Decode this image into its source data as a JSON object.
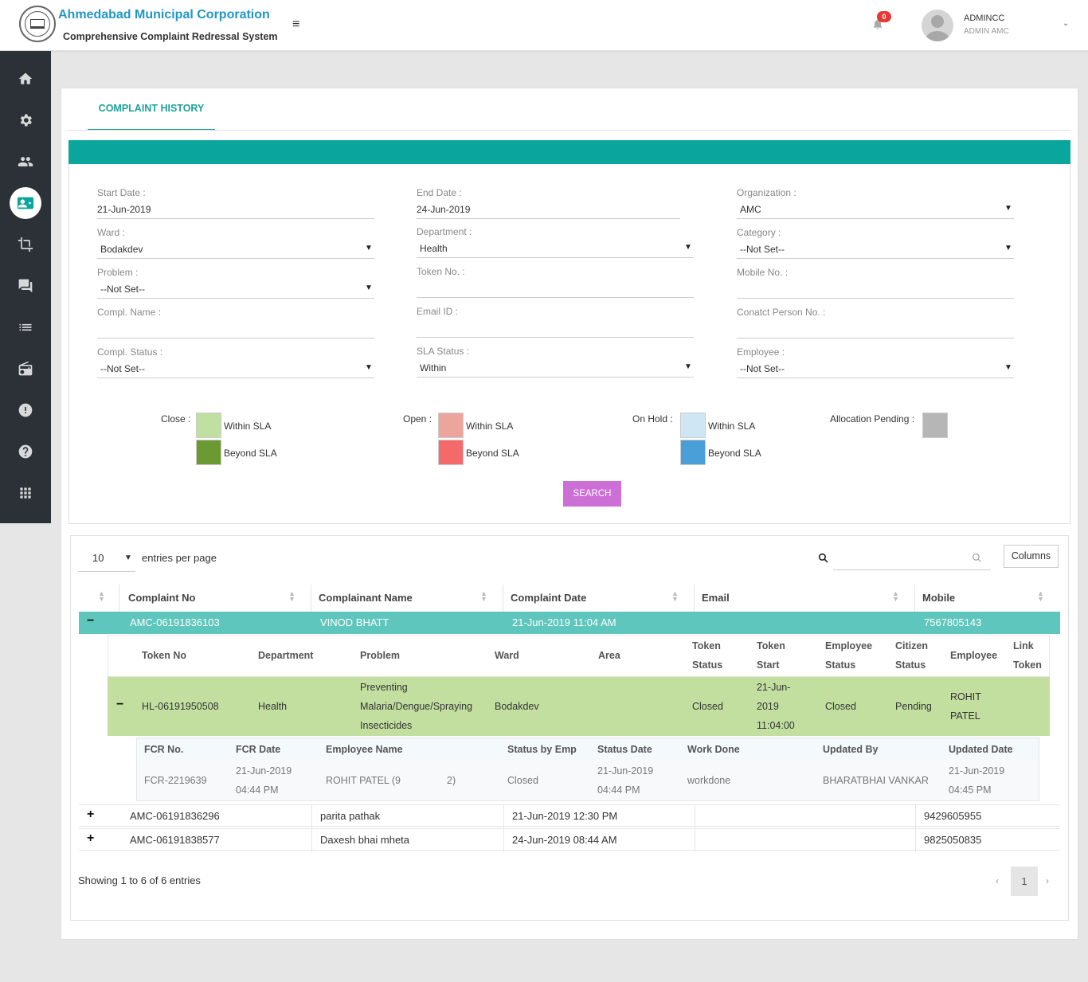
{
  "header": {
    "org_title": "Ahmedabad Municipal Corporation",
    "system_title": "Comprehensive Complaint Redressal System",
    "menu_icon": "≡",
    "notification_count": "0",
    "user_name": "ADMINCC",
    "user_role": "ADMIN AMC"
  },
  "tabs": {
    "active": "COMPLAINT HISTORY"
  },
  "filters": {
    "start_date": {
      "label": "Start Date :",
      "value": "21-Jun-2019"
    },
    "end_date": {
      "label": "End Date :",
      "value": "24-Jun-2019"
    },
    "organization": {
      "label": "Organization :",
      "value": "AMC"
    },
    "ward": {
      "label": "Ward :",
      "value": "Bodakdev"
    },
    "department": {
      "label": "Department :",
      "value": "Health"
    },
    "category": {
      "label": "Category :",
      "value": "--Not Set--"
    },
    "problem": {
      "label": "Problem :",
      "value": "--Not Set--"
    },
    "token_no": {
      "label": "Token No. :",
      "value": ""
    },
    "mobile_no": {
      "label": "Mobile No. :",
      "value": ""
    },
    "compl_name": {
      "label": "Compl. Name :",
      "value": ""
    },
    "email_id": {
      "label": "Email ID :",
      "value": ""
    },
    "contact_person": {
      "label": "Conatct Person No. :",
      "value": ""
    },
    "compl_status": {
      "label": "Compl. Status :",
      "value": "--Not Set--"
    },
    "sla_status": {
      "label": "SLA Status :",
      "value": "Within"
    },
    "employee": {
      "label": "Employee :",
      "value": "--Not Set--"
    }
  },
  "legend": {
    "close": {
      "label": "Close :",
      "within": "Within SLA",
      "beyond": "Beyond SLA",
      "within_color": "#bfe0a0",
      "beyond_color": "#6b9a33"
    },
    "open": {
      "label": "Open :",
      "within": "Within SLA",
      "beyond": "Beyond SLA",
      "within_color": "#eba59d",
      "beyond_color": "#f46a6a"
    },
    "on_hold": {
      "label": "On Hold :",
      "within": "Within SLA",
      "beyond": "Beyond SLA",
      "within_color": "#cfe6f5",
      "beyond_color": "#4a9fd8"
    },
    "allocation_pending": {
      "label": "Allocation Pending :",
      "color": "#b6b6b6"
    }
  },
  "search_button": "SEARCH",
  "table": {
    "entries_value": "10",
    "entries_label": "entries per page",
    "columns_button": "Columns",
    "headers": [
      "Complaint No",
      "Complainant Name",
      "Complaint Date",
      "Email",
      "Mobile"
    ],
    "rows": [
      {
        "toggle": "−",
        "complaint_no": "AMC-06191836103",
        "name": "VINOD BHATT",
        "date": "21-Jun-2019 11:04 AM",
        "email": "",
        "mobile": "7567805143"
      },
      {
        "toggle": "+",
        "complaint_no": "AMC-06191836296",
        "name": "parita pathak",
        "date": "21-Jun-2019 12:30 PM",
        "email": "",
        "mobile": "9429605955"
      },
      {
        "toggle": "+",
        "complaint_no": "AMC-06191838577",
        "name": "Daxesh bhai mheta",
        "date": "24-Jun-2019 08:44 AM",
        "email": "",
        "mobile": "9825050835"
      }
    ],
    "token_headers": {
      "token_no": "Token No",
      "department": "Department",
      "problem": "Problem",
      "ward": "Ward",
      "area": "Area",
      "token_status_1": "Token",
      "token_status_2": "Status",
      "token_start_1": "Token",
      "token_start_2": "Start",
      "employee_status_1": "Employee",
      "employee_status_2": "Status",
      "citizen_status_1": "Citizen",
      "citizen_status_2": "Status",
      "employee": "Employee",
      "link_token_1": "Link",
      "link_token_2": "Token"
    },
    "token_row": {
      "toggle": "−",
      "token_no": "HL-06191950508",
      "department": "Health",
      "problem_1": "Preventing",
      "problem_2": "Malaria/Dengue/Spraying",
      "problem_3": "Insecticides",
      "ward": "Bodakdev",
      "token_status": "Closed",
      "token_start_1": "21-Jun-",
      "token_start_2": "2019",
      "token_start_3": "11:04:00",
      "employee_status": "Closed",
      "citizen_status": "Pending",
      "employee_1": "ROHIT",
      "employee_2": "PATEL"
    },
    "fcr_headers": {
      "fcr_no": "FCR No.",
      "fcr_date": "FCR Date",
      "employee_name": "Employee Name",
      "status_by_emp": "Status by Emp",
      "status_date": "Status Date",
      "work_done": "Work Done",
      "updated_by": "Updated By",
      "updated_date": "Updated Date"
    },
    "fcr_row": {
      "fcr_no": "FCR-2219639",
      "fcr_date_1": "21-Jun-2019",
      "fcr_date_2": "04:44 PM",
      "employee_name_a": "ROHIT PATEL (9",
      "employee_name_b": "2)",
      "status_by_emp": "Closed",
      "status_date_1": "21-Jun-2019",
      "status_date_2": "04:44 PM",
      "work_done": "workdone",
      "updated_by": "BHARATBHAI VANKAR",
      "updated_date_1": "21-Jun-2019",
      "updated_date_2": "04:45 PM"
    },
    "showing": "Showing 1 to 6 of 6 entries",
    "pagination": {
      "prev": "‹",
      "current": "1",
      "next": "›"
    }
  },
  "sidebar": {
    "items": [
      "home-icon",
      "settings-icon",
      "users-icon",
      "complaint-card-icon",
      "crop-icon",
      "chat-icon",
      "list-icon",
      "radio-icon",
      "alert-icon",
      "help-icon",
      "apps-icon"
    ]
  }
}
